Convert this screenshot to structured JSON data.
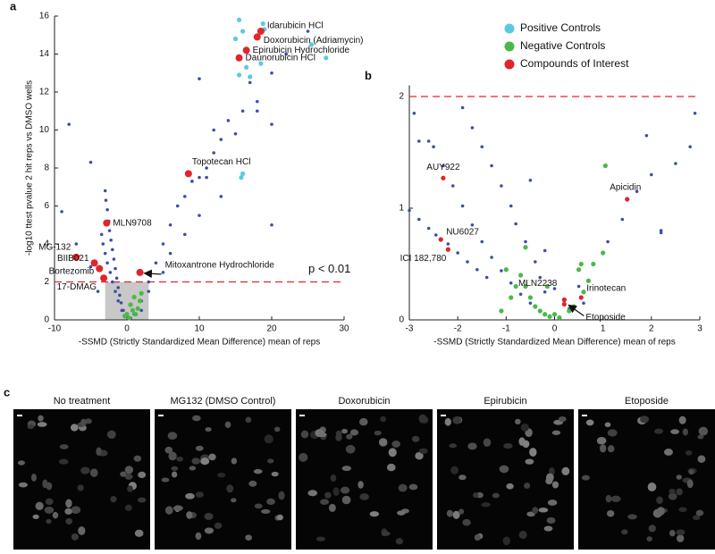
{
  "chart_data": [
    {
      "type": "scatter",
      "panel": "a",
      "xlabel": "-SSMD (Strictly Standardized Mean Difference) mean of reps",
      "ylabel": "-log10 ttest pvalue 2 hit reps vs DMSO wells",
      "xlim": [
        -10,
        30
      ],
      "xticks": [
        -10,
        0,
        10,
        20,
        30
      ],
      "ylim": [
        0,
        16
      ],
      "yticks": [
        0,
        2,
        4,
        6,
        8,
        10,
        12,
        14,
        16
      ],
      "threshold": 2,
      "threshold_label": "p < 0.01",
      "highlight_box": {
        "x": [
          -3,
          3
        ],
        "y": [
          0,
          2
        ]
      },
      "legend": "upper-right-outside",
      "series": [
        {
          "color": "#3b4fa6",
          "x": [
            -3,
            -2.9,
            -2.7,
            -2.5,
            -2.4,
            -2.2,
            -2,
            -1.8,
            -1.6,
            -1.4,
            -1.2,
            -1,
            -0.8,
            -0.5,
            -0.3,
            -3.5,
            -3.3,
            -3,
            -2.7,
            -2.3,
            -2,
            -1.6,
            -1.2,
            -0.7,
            2,
            3,
            4,
            5,
            6,
            7,
            8,
            9,
            10,
            11,
            12,
            13,
            14,
            16,
            18,
            20,
            22,
            3,
            5,
            6,
            8,
            10,
            -8,
            -9,
            -5,
            -7,
            -5,
            -4,
            10,
            12,
            15,
            13,
            11,
            9,
            20,
            25,
            18,
            20,
            17,
            1,
            2,
            0.5
          ],
          "values": [
            6.8,
            6.3,
            5.8,
            5.2,
            4.7,
            4.2,
            3.7,
            3.2,
            2.7,
            2.2,
            1.7,
            1.3,
            0.9,
            0.5,
            0.2,
            4.5,
            4,
            3.5,
            3,
            2.5,
            2,
            1.5,
            1,
            0.5,
            1,
            2,
            3,
            4,
            5,
            6,
            6.5,
            7.3,
            7.5,
            8,
            8.8,
            9.5,
            10.5,
            11,
            11.5,
            13,
            14,
            1.5,
            2.5,
            3.5,
            4.5,
            5.5,
            10.3,
            5.7,
            8.3,
            4,
            2.8,
            1.5,
            12.7,
            10,
            9.8,
            6.5,
            7.5,
            7.3,
            5,
            15.2,
            11,
            10.3,
            12.5,
            0.3,
            0.5,
            0.1
          ]
        },
        {
          "name": "Positive Controls",
          "color": "#5ec8e3",
          "x": [
            15.5,
            16,
            18.8,
            15,
            19,
            17,
            16.5,
            15.5,
            16,
            15.8,
            25.5,
            27.5,
            18.5
          ],
          "values": [
            15.8,
            15.2,
            15.6,
            14.8,
            15.3,
            12.8,
            13.3,
            12.9,
            7.7,
            7.5,
            14.5,
            13.8,
            13.5
          ]
        },
        {
          "name": "Negative Controls",
          "color": "#4cb849",
          "x": [
            0,
            0.5,
            1,
            1.5,
            2,
            0.3,
            -0.3,
            1.2,
            0.8,
            1.8
          ],
          "values": [
            0.3,
            0.8,
            1.2,
            0.6,
            1.4,
            0.1,
            0.2,
            0.3,
            0.5,
            1
          ]
        },
        {
          "name": "Compounds of Interest",
          "color": "#e3242b",
          "x": [
            18.5,
            18,
            16.5,
            15.5,
            8.5,
            -2.8,
            -7,
            -4.5,
            -3.8,
            -3.2,
            1.8
          ],
          "values": [
            15.2,
            14.9,
            14.2,
            13.8,
            7.7,
            5.1,
            3.3,
            3,
            2.7,
            2.2,
            2.5
          ],
          "labels": [
            "Idarubicin HCl",
            "Doxorubicin (Adriamycin)",
            "Epirubicin Hydrochloride",
            "Daunorubicin HCl",
            "Topotecan HCl",
            "MLN9708",
            "MG-132",
            "BIIB021",
            "Bortezomib",
            "17-DMAG",
            "Mitoxantrone Hydrochloride"
          ]
        }
      ]
    },
    {
      "type": "scatter",
      "panel": "b",
      "xlabel": "-SSMD (Strictly Standardized Mean Difference) mean of reps",
      "xlim": [
        -3,
        3
      ],
      "xticks": [
        -3,
        -2,
        -1,
        0,
        1,
        2,
        3
      ],
      "ylim": [
        0,
        2.1
      ],
      "yticks": [
        0,
        1,
        2
      ],
      "threshold": 2,
      "series": [
        {
          "color": "#3b4fa6",
          "x": [
            -3,
            -2.8,
            -2.6,
            -2.45,
            -2.2,
            -2,
            -1.8,
            -1.6,
            -1.4,
            -2.5,
            -2.3,
            -2.1,
            -1.9,
            -1.7,
            -1.5,
            -1.3,
            -1.1,
            -0.9,
            -0.7,
            -0.5,
            -1.9,
            -1.7,
            -1.5,
            -1.3,
            -1.1,
            -0.9,
            -0.8,
            -0.6,
            -0.4,
            -0.3,
            -0.2,
            0.5,
            0.8,
            1.1,
            1.4,
            1.7,
            2,
            2.2,
            2.5,
            2.8,
            2.9,
            1.9,
            2.2,
            0.6,
            0.3,
            -2.9,
            -2.6,
            -2.8,
            -0.5,
            -0.2,
            0
          ],
          "values": [
            0.98,
            0.9,
            0.82,
            0.76,
            0.68,
            0.6,
            0.52,
            0.45,
            0.38,
            1.55,
            1.38,
            1.2,
            1.02,
            0.85,
            0.7,
            0.56,
            0.44,
            0.33,
            0.23,
            0.15,
            1.9,
            1.72,
            1.55,
            1.38,
            1.2,
            1.02,
            0.86,
            0.7,
            0.52,
            0.38,
            0.25,
            0.3,
            0.5,
            0.7,
            0.9,
            1.15,
            1.3,
            0.8,
            1.4,
            1.55,
            1.85,
            1.65,
            0.78,
            0.15,
            0.1,
            1.85,
            1.6,
            1.6,
            1.25,
            0.62,
            0.28
          ]
        },
        {
          "color": "#4cb849",
          "x": [
            -0.6,
            -0.5,
            -0.4,
            -0.3,
            -0.2,
            -0.1,
            0,
            0.1,
            0.3,
            0.4,
            0.6,
            0.7,
            0.8,
            -0.7,
            -0.8,
            -1,
            -0.9,
            -1.1,
            -0.6,
            1,
            1.05,
            0.5,
            0.55,
            0.2,
            -0.15
          ],
          "values": [
            0.3,
            0.2,
            0.12,
            0.08,
            0.05,
            0.03,
            0.05,
            0.02,
            0.08,
            0.12,
            0.25,
            0.35,
            0.5,
            0.4,
            0.3,
            0.45,
            0.2,
            0.08,
            0.65,
            0.6,
            1.38,
            0.45,
            0.5,
            0.18,
            0.3
          ]
        },
        {
          "color": "#e3242b",
          "x": [
            -2.3,
            -2.35,
            -2.2,
            1.5,
            0.2,
            0.55,
            0.2
          ],
          "values": [
            1.27,
            0.72,
            0.63,
            1.08,
            0.18,
            0.2,
            0.14
          ],
          "labels": [
            "AUY922",
            "NU6027",
            "ICI 182,780",
            "Apicidin",
            "MLN2238",
            "Irinotecan",
            "Etoposide"
          ]
        }
      ]
    }
  ],
  "panel_c": {
    "label": "c",
    "images": [
      "No treatment",
      "MG132 (DMSO Control)",
      "Doxorubicin",
      "Epirubicin",
      "Etoposide"
    ]
  }
}
